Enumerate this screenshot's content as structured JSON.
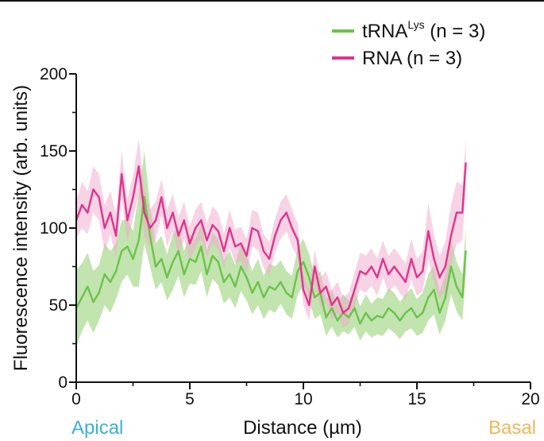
{
  "chart_data": {
    "type": "line",
    "title": "",
    "xlabel": "Distance (µm)",
    "ylabel": "Fluorescence intensity (arb. units)",
    "xlim": [
      0,
      20
    ],
    "ylim": [
      0,
      200
    ],
    "xticks": [
      0,
      5,
      10,
      15,
      20
    ],
    "yticks": [
      0,
      50,
      100,
      150,
      200
    ],
    "grid": false,
    "legend_position": "top-right",
    "annotations": [
      {
        "text": "Apical",
        "color": "#3ab0d8",
        "position": "bottom-left"
      },
      {
        "text": "Basal",
        "color": "#f2b55a",
        "position": "bottom-right"
      }
    ],
    "series": [
      {
        "name": "tRNA",
        "name_superscript": "Lys",
        "name_suffix": " (n = 3)",
        "color": "#6cc24a",
        "band_color": "#9ad27a",
        "x": [
          0,
          0.25,
          0.5,
          0.75,
          1.0,
          1.25,
          1.5,
          1.75,
          2.0,
          2.25,
          2.5,
          2.75,
          3.0,
          3.25,
          3.5,
          3.75,
          4.0,
          4.25,
          4.5,
          4.75,
          5.0,
          5.25,
          5.5,
          5.75,
          6.0,
          6.25,
          6.5,
          6.75,
          7.0,
          7.25,
          7.5,
          7.75,
          8.0,
          8.25,
          8.5,
          8.75,
          9.0,
          9.25,
          9.5,
          9.75,
          10.0,
          10.25,
          10.5,
          10.75,
          11.0,
          11.25,
          11.5,
          11.75,
          12.0,
          12.25,
          12.5,
          12.75,
          13.0,
          13.25,
          13.5,
          13.75,
          14.0,
          14.25,
          14.5,
          14.75,
          15.0,
          15.25,
          15.5,
          15.75,
          16.0,
          16.25,
          16.5,
          16.75,
          17.0,
          17.15
        ],
        "y": [
          48,
          55,
          62,
          52,
          58,
          70,
          65,
          72,
          85,
          88,
          80,
          92,
          120,
          95,
          75,
          80,
          68,
          78,
          85,
          70,
          80,
          78,
          88,
          70,
          82,
          78,
          65,
          70,
          62,
          75,
          68,
          58,
          65,
          55,
          62,
          60,
          65,
          58,
          55,
          72,
          78,
          68,
          55,
          58,
          42,
          48,
          40,
          45,
          42,
          48,
          38,
          45,
          40,
          43,
          42,
          48,
          45,
          40,
          45,
          48,
          42,
          45,
          55,
          60,
          45,
          55,
          75,
          62,
          55,
          85
        ],
        "band_half_width": [
          25,
          22,
          22,
          20,
          18,
          20,
          20,
          18,
          20,
          18,
          18,
          30,
          30,
          20,
          15,
          15,
          15,
          18,
          16,
          15,
          16,
          15,
          16,
          15,
          15,
          15,
          14,
          15,
          14,
          16,
          15,
          14,
          15,
          14,
          15,
          15,
          14,
          14,
          14,
          15,
          15,
          15,
          14,
          14,
          12,
          12,
          11,
          12,
          11,
          12,
          11,
          12,
          11,
          12,
          12,
          13,
          13,
          12,
          12,
          13,
          12,
          13,
          15,
          16,
          14,
          15,
          18,
          16,
          15,
          15
        ]
      },
      {
        "name": "RNA",
        "name_superscript": "",
        "name_suffix": " (n = 3)",
        "color": "#e0338c",
        "band_color": "#f0a8cc",
        "x": [
          0,
          0.25,
          0.5,
          0.75,
          1.0,
          1.25,
          1.5,
          1.75,
          2.0,
          2.25,
          2.5,
          2.75,
          3.0,
          3.25,
          3.5,
          3.75,
          4.0,
          4.25,
          4.5,
          4.75,
          5.0,
          5.25,
          5.5,
          5.75,
          6.0,
          6.25,
          6.5,
          6.75,
          7.0,
          7.25,
          7.5,
          7.75,
          8.0,
          8.25,
          8.5,
          8.75,
          9.0,
          9.25,
          9.5,
          9.75,
          10.0,
          10.25,
          10.5,
          10.75,
          11.0,
          11.25,
          11.5,
          11.75,
          12.0,
          12.25,
          12.5,
          12.75,
          13.0,
          13.25,
          13.5,
          13.75,
          14.0,
          14.25,
          14.5,
          14.75,
          15.0,
          15.25,
          15.5,
          15.75,
          16.0,
          16.25,
          16.5,
          16.75,
          17.0,
          17.15
        ],
        "y": [
          105,
          115,
          110,
          125,
          120,
          100,
          110,
          95,
          135,
          105,
          120,
          140,
          110,
          100,
          105,
          120,
          100,
          110,
          95,
          105,
          90,
          100,
          105,
          92,
          102,
          98,
          85,
          100,
          88,
          90,
          82,
          100,
          98,
          85,
          80,
          95,
          105,
          110,
          100,
          92,
          60,
          50,
          75,
          58,
          62,
          50,
          55,
          45,
          48,
          60,
          72,
          70,
          75,
          68,
          80,
          70,
          75,
          70,
          65,
          80,
          68,
          72,
          98,
          80,
          68,
          75,
          95,
          110,
          110,
          142
        ],
        "band_half_width": [
          12,
          15,
          14,
          15,
          15,
          15,
          14,
          14,
          15,
          14,
          14,
          18,
          15,
          12,
          12,
          12,
          12,
          12,
          12,
          12,
          11,
          12,
          12,
          11,
          12,
          12,
          11,
          12,
          11,
          11,
          11,
          12,
          12,
          11,
          11,
          11,
          12,
          12,
          12,
          11,
          10,
          10,
          11,
          10,
          10,
          10,
          10,
          10,
          10,
          11,
          12,
          12,
          12,
          12,
          12,
          12,
          12,
          12,
          12,
          13,
          12,
          13,
          18,
          16,
          14,
          16,
          20,
          20,
          18,
          15
        ]
      }
    ]
  }
}
